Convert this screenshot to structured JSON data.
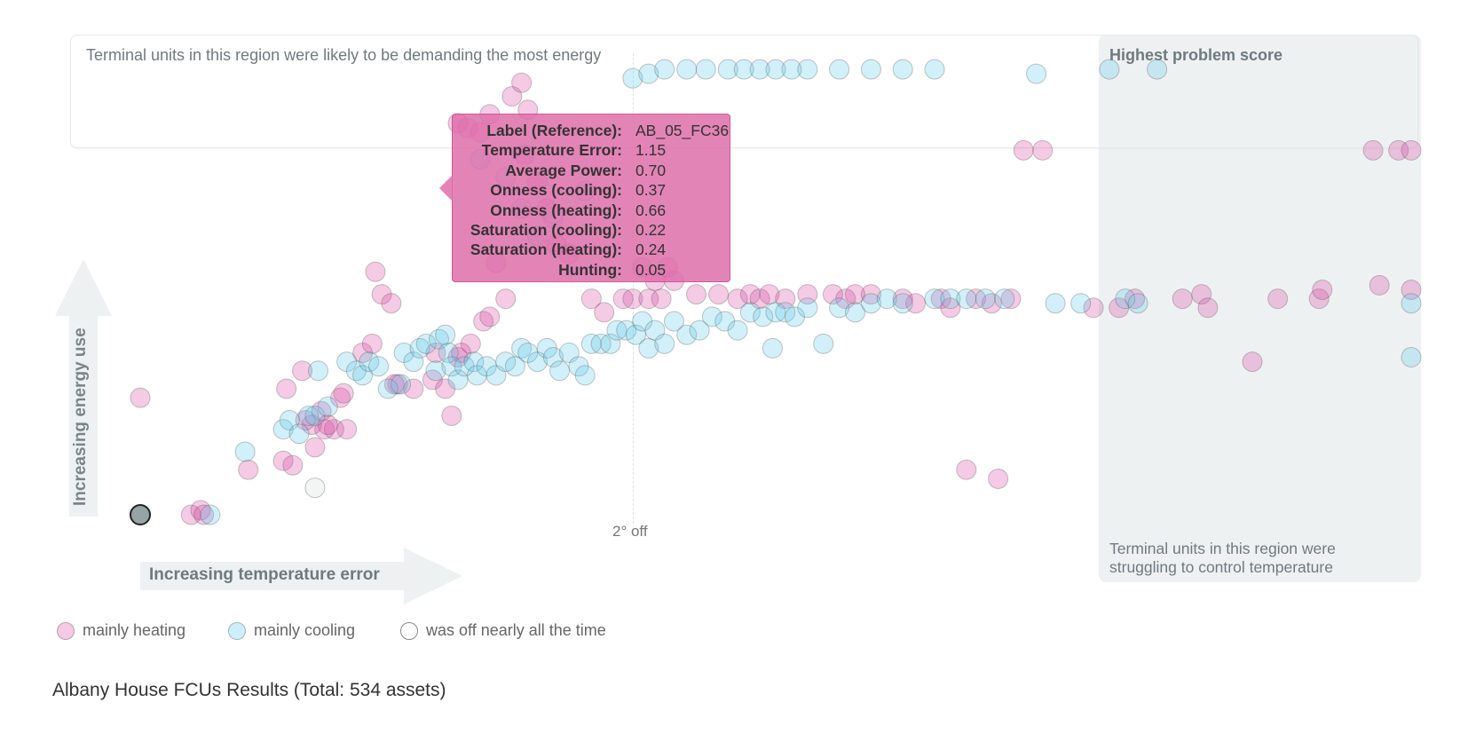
{
  "regions": {
    "top_label": "Terminal units in this region were likely to be demanding the most energy",
    "right_title": "Highest problem score",
    "right_label": "Terminal units in this region were struggling to control temperature"
  },
  "axes": {
    "y_label": "Increasing energy use",
    "x_label": "Increasing temperature error",
    "midline_label": "2° off"
  },
  "legend": [
    {
      "label": "mainly heating",
      "color": "#e07fbf"
    },
    {
      "label": "mainly cooling",
      "color": "#7fd6ee"
    },
    {
      "label": "was off nearly all the time",
      "color": "#ffffff"
    }
  ],
  "tooltip": {
    "rows": [
      {
        "key": "Label (Reference):",
        "value": "AB_05_FC36"
      },
      {
        "key": "Temperature Error:",
        "value": "1.15"
      },
      {
        "key": "Average Power:",
        "value": "0.70"
      },
      {
        "key": "Onness (cooling):",
        "value": "0.37"
      },
      {
        "key": "Onness (heating):",
        "value": "0.66"
      },
      {
        "key": "Saturation (cooling):",
        "value": "0.22"
      },
      {
        "key": "Saturation (heating):",
        "value": "0.24"
      },
      {
        "key": "Hunting:",
        "value": "0.05"
      }
    ]
  },
  "footer": {
    "title": "Albany House FCUs Results (Total: 534 assets)"
  },
  "colors": {
    "heating": "#d94fa6",
    "cooling": "#5cc8ea",
    "off": "#a9b2b5",
    "selected": "#98a3a6"
  },
  "chart_data": {
    "type": "scatter",
    "xlabel": "Increasing temperature error",
    "ylabel": "Increasing energy use",
    "xlim": [
      0,
      4
    ],
    "ylim": [
      0,
      1
    ],
    "reference_line": {
      "x": 2,
      "label": "2° off"
    },
    "selected_point": {
      "x": 0.0,
      "y": 0.0,
      "category": "off"
    },
    "series": [
      {
        "name": "mainly heating",
        "category": "heating",
        "points": [
          [
            0.0,
            0.26
          ],
          [
            0.16,
            0.0
          ],
          [
            0.19,
            0.01
          ],
          [
            0.2,
            0.0
          ],
          [
            0.34,
            0.1
          ],
          [
            0.45,
            0.12
          ],
          [
            0.48,
            0.11
          ],
          [
            0.54,
            0.2
          ],
          [
            0.52,
            0.21
          ],
          [
            0.46,
            0.28
          ],
          [
            0.51,
            0.32
          ],
          [
            0.55,
            0.15
          ],
          [
            0.58,
            0.19
          ],
          [
            0.61,
            0.19
          ],
          [
            0.57,
            0.23
          ],
          [
            0.59,
            0.2
          ],
          [
            0.63,
            0.26
          ],
          [
            0.65,
            0.19
          ],
          [
            0.64,
            0.27
          ],
          [
            0.7,
            0.36
          ],
          [
            0.74,
            0.54
          ],
          [
            0.76,
            0.49
          ],
          [
            0.79,
            0.47
          ],
          [
            0.73,
            0.38
          ],
          [
            0.81,
            0.29
          ],
          [
            0.8,
            0.29
          ],
          [
            0.86,
            0.28
          ],
          [
            0.92,
            0.3
          ],
          [
            0.98,
            0.22
          ],
          [
            0.96,
            0.28
          ],
          [
            0.93,
            0.36
          ],
          [
            1.0,
            0.35
          ],
          [
            1.01,
            0.36
          ],
          [
            1.04,
            0.38
          ],
          [
            1.08,
            0.43
          ],
          [
            1.1,
            0.44
          ],
          [
            1.15,
            0.48
          ],
          [
            1.12,
            0.56
          ],
          [
            1.07,
            0.85
          ],
          [
            1.1,
            0.89
          ],
          [
            1.0,
            0.87
          ],
          [
            1.03,
            0.86
          ],
          [
            1.17,
            0.93
          ],
          [
            1.2,
            0.96
          ],
          [
            1.22,
            0.9
          ],
          [
            1.21,
            0.8
          ],
          [
            1.25,
            0.74
          ],
          [
            1.28,
            0.68
          ],
          [
            1.31,
            0.6
          ],
          [
            1.35,
            0.58
          ],
          [
            1.42,
            0.48
          ],
          [
            1.46,
            0.45
          ],
          [
            1.52,
            0.48
          ],
          [
            1.55,
            0.48
          ],
          [
            1.6,
            0.48
          ],
          [
            1.64,
            0.48
          ],
          [
            1.68,
            0.52
          ],
          [
            1.62,
            0.52
          ],
          [
            1.58,
            0.55
          ],
          [
            1.66,
            0.55
          ],
          [
            1.75,
            0.49
          ],
          [
            1.82,
            0.49
          ],
          [
            1.88,
            0.48
          ],
          [
            1.92,
            0.49
          ],
          [
            1.95,
            0.48
          ],
          [
            1.98,
            0.49
          ],
          [
            2.03,
            0.48
          ],
          [
            2.1,
            0.49
          ],
          [
            2.18,
            0.49
          ],
          [
            2.22,
            0.48
          ],
          [
            2.25,
            0.49
          ],
          [
            2.3,
            0.49
          ],
          [
            2.4,
            0.48
          ],
          [
            2.44,
            0.47
          ],
          [
            2.52,
            0.48
          ],
          [
            2.55,
            0.46
          ],
          [
            2.63,
            0.48
          ],
          [
            2.68,
            0.47
          ],
          [
            2.74,
            0.48
          ],
          [
            2.6,
            0.1
          ],
          [
            2.7,
            0.08
          ],
          [
            2.78,
            0.81
          ],
          [
            2.84,
            0.81
          ],
          [
            3.0,
            0.46
          ],
          [
            3.08,
            0.46
          ],
          [
            3.13,
            0.48
          ],
          [
            3.28,
            0.48
          ],
          [
            3.34,
            0.49
          ],
          [
            3.36,
            0.46
          ],
          [
            3.5,
            0.34
          ],
          [
            3.58,
            0.48
          ],
          [
            3.71,
            0.48
          ],
          [
            3.72,
            0.5
          ],
          [
            3.9,
            0.51
          ],
          [
            3.88,
            0.81
          ],
          [
            3.96,
            0.81
          ],
          [
            4.0,
            0.5
          ],
          [
            4.0,
            0.81
          ]
        ]
      },
      {
        "name": "mainly cooling",
        "category": "cooling",
        "points": [
          [
            0.22,
            0.0
          ],
          [
            0.33,
            0.14
          ],
          [
            0.45,
            0.19
          ],
          [
            0.47,
            0.21
          ],
          [
            0.5,
            0.18
          ],
          [
            0.53,
            0.22
          ],
          [
            0.55,
            0.22
          ],
          [
            0.59,
            0.24
          ],
          [
            0.56,
            0.32
          ],
          [
            0.65,
            0.34
          ],
          [
            0.68,
            0.32
          ],
          [
            0.7,
            0.31
          ],
          [
            0.72,
            0.34
          ],
          [
            0.75,
            0.33
          ],
          [
            0.78,
            0.28
          ],
          [
            0.82,
            0.29
          ],
          [
            0.83,
            0.36
          ],
          [
            0.86,
            0.34
          ],
          [
            0.88,
            0.37
          ],
          [
            0.9,
            0.38
          ],
          [
            0.93,
            0.32
          ],
          [
            0.94,
            0.39
          ],
          [
            0.96,
            0.4
          ],
          [
            0.97,
            0.36
          ],
          [
            0.98,
            0.33
          ],
          [
            1.0,
            0.3
          ],
          [
            1.02,
            0.33
          ],
          [
            1.05,
            0.34
          ],
          [
            1.06,
            0.31
          ],
          [
            1.09,
            0.33
          ],
          [
            1.12,
            0.31
          ],
          [
            1.15,
            0.34
          ],
          [
            1.18,
            0.33
          ],
          [
            1.2,
            0.37
          ],
          [
            1.22,
            0.36
          ],
          [
            1.25,
            0.34
          ],
          [
            1.28,
            0.37
          ],
          [
            1.3,
            0.35
          ],
          [
            1.32,
            0.32
          ],
          [
            1.35,
            0.36
          ],
          [
            1.38,
            0.33
          ],
          [
            1.4,
            0.31
          ],
          [
            1.42,
            0.38
          ],
          [
            1.45,
            0.38
          ],
          [
            1.48,
            0.38
          ],
          [
            1.5,
            0.41
          ],
          [
            1.53,
            0.41
          ],
          [
            1.56,
            0.4
          ],
          [
            1.58,
            0.43
          ],
          [
            1.6,
            0.37
          ],
          [
            1.62,
            0.41
          ],
          [
            1.65,
            0.38
          ],
          [
            1.68,
            0.43
          ],
          [
            1.72,
            0.4
          ],
          [
            1.76,
            0.41
          ],
          [
            1.8,
            0.44
          ],
          [
            1.84,
            0.43
          ],
          [
            1.88,
            0.41
          ],
          [
            1.92,
            0.45
          ],
          [
            1.96,
            0.44
          ],
          [
            1.99,
            0.37
          ],
          [
            2.0,
            0.45
          ],
          [
            2.03,
            0.45
          ],
          [
            2.06,
            0.44
          ],
          [
            2.1,
            0.46
          ],
          [
            2.15,
            0.38
          ],
          [
            2.2,
            0.46
          ],
          [
            2.25,
            0.45
          ],
          [
            2.3,
            0.47
          ],
          [
            2.35,
            0.48
          ],
          [
            2.4,
            0.47
          ],
          [
            2.5,
            0.48
          ],
          [
            2.55,
            0.48
          ],
          [
            2.6,
            0.48
          ],
          [
            2.66,
            0.48
          ],
          [
            2.72,
            0.48
          ],
          [
            2.88,
            0.47
          ],
          [
            2.96,
            0.47
          ],
          [
            3.1,
            0.48
          ],
          [
            3.14,
            0.47
          ],
          [
            1.07,
            0.79
          ],
          [
            1.15,
            0.75
          ],
          [
            1.2,
            0.68
          ],
          [
            1.25,
            0.62
          ],
          [
            1.3,
            0.66
          ],
          [
            1.4,
            0.72
          ],
          [
            1.55,
            0.97
          ],
          [
            1.6,
            0.98
          ],
          [
            1.65,
            0.99
          ],
          [
            1.72,
            0.99
          ],
          [
            1.78,
            0.99
          ],
          [
            1.85,
            0.99
          ],
          [
            1.9,
            0.99
          ],
          [
            1.95,
            0.99
          ],
          [
            2.0,
            0.99
          ],
          [
            2.05,
            0.99
          ],
          [
            2.1,
            0.99
          ],
          [
            2.2,
            0.99
          ],
          [
            2.3,
            0.99
          ],
          [
            2.4,
            0.99
          ],
          [
            2.5,
            0.99
          ],
          [
            2.82,
            0.98
          ],
          [
            3.05,
            0.99
          ],
          [
            3.2,
            0.99
          ],
          [
            4.0,
            0.35
          ],
          [
            4.0,
            0.47
          ]
        ]
      },
      {
        "name": "was off nearly all the time",
        "category": "off",
        "points": [
          [
            0.55,
            0.06
          ],
          [
            1.3,
            0.67
          ]
        ]
      }
    ]
  }
}
